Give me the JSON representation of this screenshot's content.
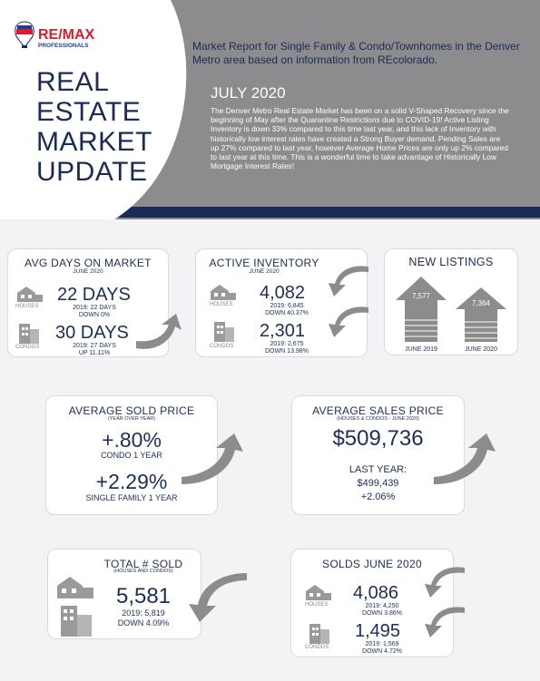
{
  "header": {
    "logo": "RE/MAX",
    "logo_sub": "PROFESSIONALS",
    "title_lines": [
      "REAL",
      "ESTATE",
      "MARKET",
      "UPDATE"
    ],
    "intro": "Market Report for Single Family & Condo/Townhomes in the Denver Metro area based on information from REcolorado.",
    "date": "JULY 2020",
    "body": "The Denver Metro Real Estate Market has been on a solid V-Shaped Recovery since the beginning of May after the Quarantine Restrictions due to COVID-19! Active Listing Inventory is down 33% compared to this time last year, and this lack of Inventory with historically low interest rates have created a Strong Buyer demand. Pending Sales are up 27% compared to last year, however Average Home Prices are only up 2% compared to last year at this time. This is a wonderful time to take advantage of Historically Low Mortgage Interest Rates!"
  },
  "avg_days": {
    "title": "AVG DAYS ON MARKET",
    "subtitle": "JUNE 2020",
    "houses": {
      "label": "HOUSES",
      "value": "22 DAYS",
      "prior": "2019: 22 DAYS",
      "change": "DOWN 0%"
    },
    "condos": {
      "label": "CONDOS",
      "value": "30 DAYS",
      "prior": "2019: 27 DAYS",
      "change": "UP 11.11%"
    }
  },
  "active_inventory": {
    "title": "ACTIVE INVENTORY",
    "subtitle": "JUNE 2020",
    "houses": {
      "label": "HOUSES",
      "value": "4,082",
      "prior": "2019: 6,845",
      "change": "DOWN 40.37%"
    },
    "condos": {
      "label": "CONDOS",
      "value": "2,301",
      "prior": "2019: 2,675",
      "change": "DOWN 13.98%"
    }
  },
  "new_listings": {
    "title": "NEW LISTINGS",
    "items": [
      {
        "value": "7,577",
        "label": "JUNE 2019"
      },
      {
        "value": "7,364",
        "label": "JUNE 2020"
      }
    ]
  },
  "avg_sold_price": {
    "title": "AVERAGE SOLD PRICE",
    "subtitle": "(YEAR OVER YEAR)",
    "condo_value": "+.80%",
    "condo_label": "CONDO 1 YEAR",
    "sf_value": "+2.29%",
    "sf_label": "SINGLE FAMILY 1 YEAR"
  },
  "avg_sales_price": {
    "title": "AVERAGE SALES PRICE",
    "subtitle": "(HOUSES & CONDOS - JUNE 2020)",
    "value": "$509,736",
    "last_year_label": "LAST YEAR:",
    "last_year_value": "$499,439",
    "change": "+2.06%"
  },
  "total_sold": {
    "title": "TOTAL # SOLD",
    "subtitle": "(HOUSES AND CONDOS)",
    "value": "5,581",
    "prior": "2019: 5,819",
    "change": "DOWN 4.09%"
  },
  "solds": {
    "title": "SOLDS JUNE 2020",
    "houses": {
      "label": "HOUSES",
      "value": "4,086",
      "prior": "2019: 4,250",
      "change": "DOWN 3.86%"
    },
    "condos": {
      "label": "CONDOS",
      "value": "1,495",
      "prior": "2019: 1,569",
      "change": "DOWN 4.72%"
    }
  }
}
